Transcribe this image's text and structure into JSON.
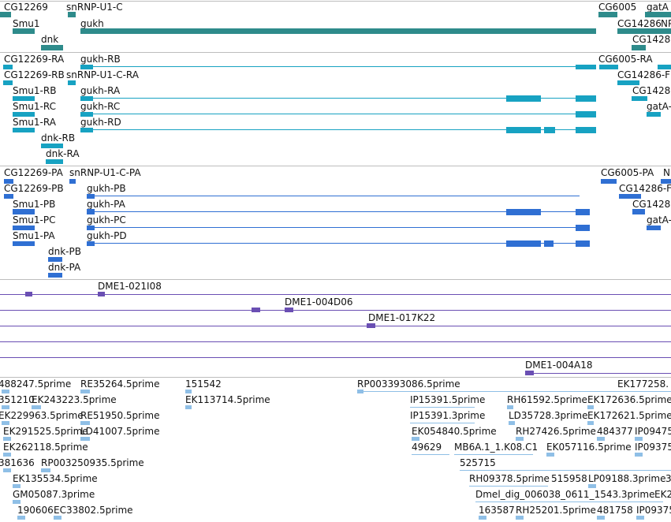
{
  "colors": {
    "gene": "#2e8b8b",
    "transcript": "#17a2c2",
    "protein": "#2f6fd3",
    "clone": "#6a4fb3",
    "est": "#8fbfe6",
    "separator": "#bdbdbd"
  },
  "tracks": {
    "genes": {
      "labels": [
        "CG12269",
        "snRNP-U1-C",
        "CG6005",
        "gatA",
        "Smu1",
        "gukh",
        "CG14286",
        "NP",
        "dnk",
        "CG1428"
      ]
    },
    "transcripts": {
      "labels": [
        "CG12269-RA",
        "gukh-RB",
        "CG6005-RA",
        "CG12269-RB",
        "snRNP-U1-C-RA",
        "CG14286-F",
        "Smu1-RB",
        "gukh-RA",
        "CG1428",
        "Smu1-RC",
        "gukh-RC",
        "gatA-",
        "Smu1-RA",
        "gukh-RD",
        "dnk-RB",
        "dnk-RA"
      ]
    },
    "proteins": {
      "labels": [
        "CG12269-PA",
        "snRNP-U1-C-PA",
        "CG6005-PA",
        "N",
        "CG12269-PB",
        "gukh-PB",
        "CG14286-F",
        "Smu1-PB",
        "gukh-PA",
        "CG1428",
        "Smu1-PC",
        "gukh-PC",
        "gatA-",
        "Smu1-PA",
        "gukh-PD",
        "dnk-PB",
        "dnk-PA"
      ]
    },
    "clones": {
      "labels": [
        "DME1-021I08",
        "DME1-004D06",
        "DME1-017K22",
        "DME1-004A18"
      ]
    },
    "ests": {
      "labels": [
        "488247.5prime",
        "RE35264.5prime",
        "151542",
        "RP003393086.5prime",
        "EK177258.",
        "351210",
        "EK243223.5prime",
        "EK113714.5prime",
        "IP15391.5prime",
        "RH61592.5prime",
        "EK172636.5prime",
        "EK229963.5prime",
        "RE51950.5prime",
        "IP15391.3prime",
        "LD35728.3prime",
        "EK172621.5prime",
        "EK291525.5prime",
        "LD41007.5prime",
        "EK054840.5prime",
        "RH27426.5prime",
        "484377",
        "IP09475",
        "EK262118.5prime",
        "49629",
        "MB6A.1_1.K08.C1",
        "EK057116.5prime",
        "IP09375",
        "381636",
        "RP003250935.5prime",
        "525715",
        "EK135534.5prime",
        "RH09378.5prime",
        "515958",
        "LP09188.3prime",
        "3",
        "GM05087.3prime",
        "Dmel_dig_006038_0611_1543.3prime",
        "EK2",
        "190606",
        "EC33802.5prime",
        "163587",
        "RH25201.5prime",
        "481758",
        "IP09375"
      ]
    }
  }
}
